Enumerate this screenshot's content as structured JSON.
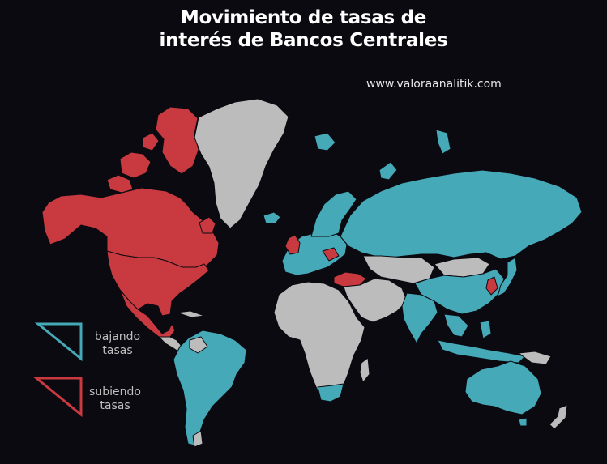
{
  "title": {
    "line1": "Movimiento de tasas de",
    "line2": "interés de Bancos Centrales"
  },
  "source": "www.valoraanalitik.com",
  "colors": {
    "background": "#0b0a11",
    "cutting": "#45a9b8",
    "hiking": "#c93a40",
    "neutral": "#bcbcbc"
  },
  "legend": {
    "cutting": {
      "line1": "bajando",
      "line2": "tasas",
      "icon": "triangle-outline-teal-icon"
    },
    "hiking": {
      "line1": "subiendo",
      "line2": "tasas",
      "icon": "triangle-outline-red-icon"
    }
  },
  "regions": {
    "cutting": [
      "Russia",
      "Europe",
      "India",
      "Australia",
      "South America",
      "China",
      "Japan",
      "Scandinavia",
      "South Africa",
      "Southeast Asia"
    ],
    "hiking": [
      "Canada",
      "United States",
      "Mexico",
      "United Kingdom",
      "Turkey",
      "South Korea"
    ],
    "neutral": [
      "Greenland",
      "Africa",
      "Middle East",
      "Central Asia",
      "Mongolia",
      "Iran"
    ]
  }
}
